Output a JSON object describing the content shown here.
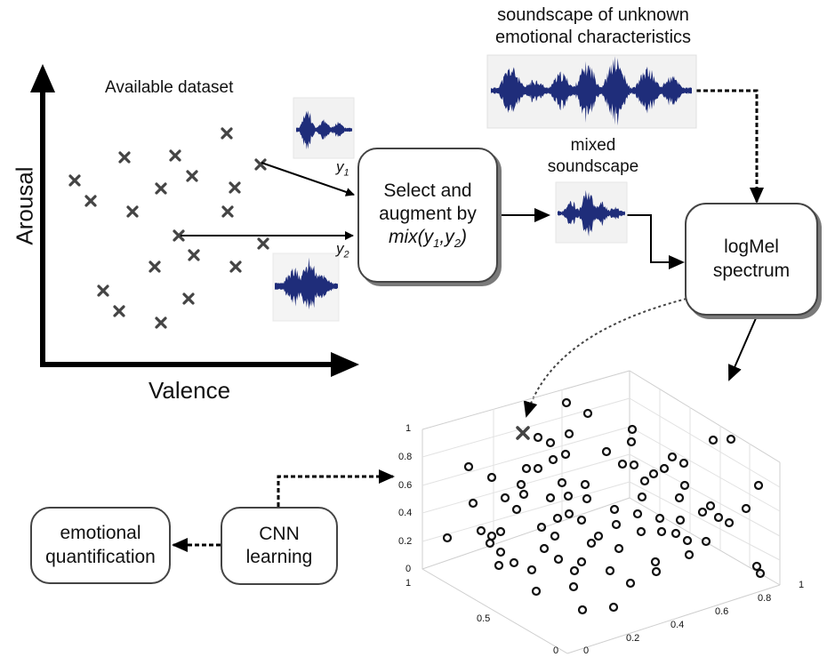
{
  "axes": {
    "y_label": "Arousal",
    "x_label": "Valence"
  },
  "dataset_label": "Available dataset",
  "unknown_label_line1": "soundscape of unknown",
  "unknown_label_line2": "emotional characteristics",
  "mixed_label_line1": "mixed",
  "mixed_label_line2": "soundscape",
  "y1": {
    "base": "y",
    "sub": "1"
  },
  "y2": {
    "base": "y",
    "sub": "2"
  },
  "select_box": {
    "line1": "Select and",
    "line2": "augment by",
    "mix_fn": "mix",
    "open": "(",
    "y": "y",
    "s1": "1",
    "comma": ",",
    "s2": "2",
    "close": ")"
  },
  "logmel_box": {
    "line1": "logMel",
    "line2": "spectrum"
  },
  "cnn_box": {
    "line1": "CNN",
    "line2": "learning"
  },
  "emo_box": {
    "line1": "emotional",
    "line2": "quantification"
  },
  "plot3d": {
    "z_ticks": [
      "1",
      "0.8",
      "0.6",
      "0.4",
      "0.2",
      "0"
    ],
    "y_ticks": [
      "1",
      "0.5",
      "0"
    ],
    "x_ticks": [
      "0",
      "0.2",
      "0.4",
      "0.6",
      "0.8",
      "1"
    ]
  },
  "colors": {
    "waveform": "#1f2d7a",
    "marker": "#444444",
    "arrow": "#000000",
    "box_border": "#444444"
  }
}
